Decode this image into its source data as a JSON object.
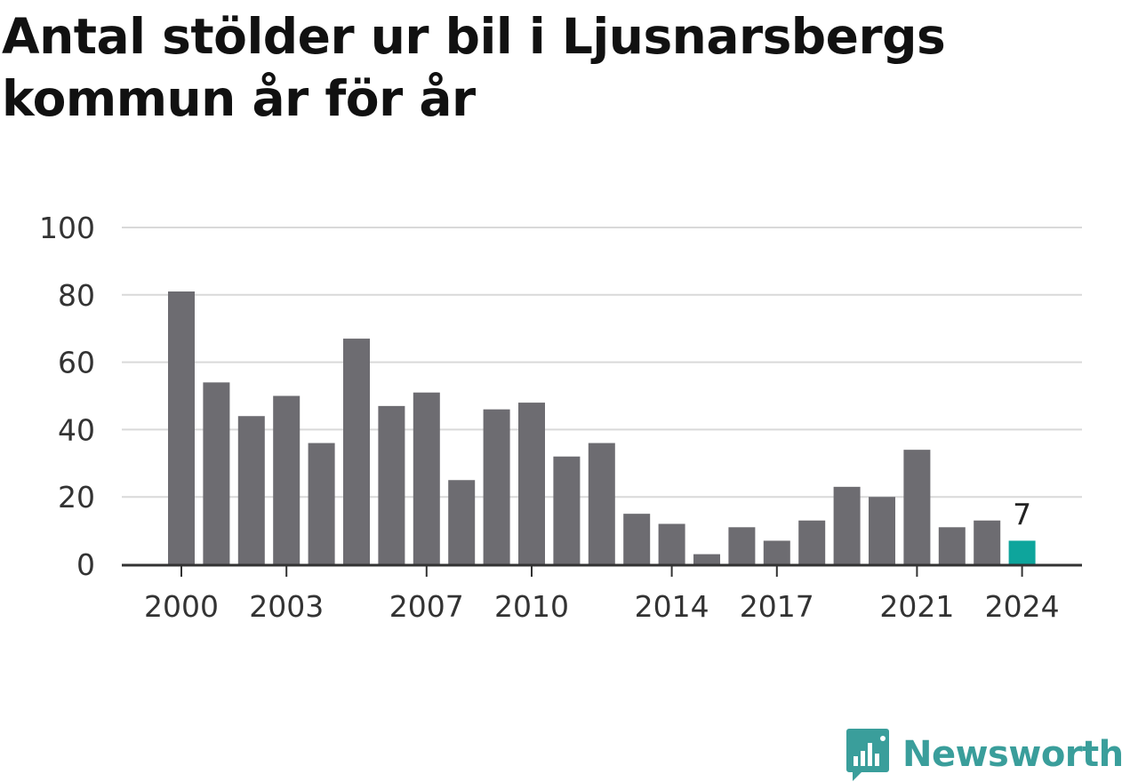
{
  "title": "Antal stölder ur bil i Ljusnarsbergs kommun år för år",
  "brand": {
    "name": "Newsworthy",
    "logo_icon": "newsworthy-logo-icon"
  },
  "colors": {
    "bar": "#6d6c71",
    "highlight": "#0ea59c",
    "grid": "#d9d9d9",
    "axis": "#333333",
    "brand": "#3a9e9b"
  },
  "chart_data": {
    "type": "bar",
    "title": "Antal stölder ur bil i Ljusnarsbergs kommun år för år",
    "xlabel": "",
    "ylabel": "",
    "categories": [
      2000,
      2001,
      2002,
      2003,
      2004,
      2005,
      2006,
      2007,
      2008,
      2009,
      2010,
      2011,
      2012,
      2013,
      2014,
      2015,
      2016,
      2017,
      2018,
      2019,
      2020,
      2021,
      2022,
      2023,
      2024
    ],
    "values": [
      81,
      54,
      44,
      50,
      36,
      67,
      47,
      51,
      25,
      46,
      48,
      32,
      36,
      15,
      12,
      3,
      11,
      7,
      13,
      23,
      20,
      34,
      11,
      13,
      7
    ],
    "x_tick_labels": [
      "2000",
      "2003",
      "2007",
      "2010",
      "2014",
      "2017",
      "2021",
      "2024"
    ],
    "y_ticks": [
      "0",
      "20",
      "40",
      "60",
      "80",
      "100"
    ],
    "ylim": [
      0,
      100
    ],
    "grid": true,
    "highlight": {
      "category": 2024,
      "label": "7"
    }
  }
}
